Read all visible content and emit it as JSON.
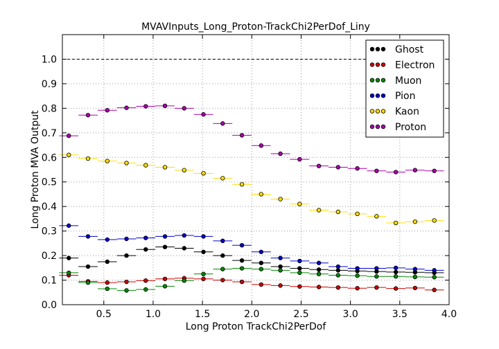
{
  "chart_data": {
    "type": "scatter",
    "title": "MVAVInputs_Long_Proton-TrackChi2PerDof_Liny",
    "xlabel": "Long Proton TrackChi2PerDof",
    "ylabel": "Long Proton MVA Output",
    "xlim": [
      0.08,
      4.0
    ],
    "ylim": [
      0.0,
      1.1
    ],
    "xticks": [
      "0.5",
      "1.0",
      "1.5",
      "2.0",
      "2.5",
      "3.0",
      "3.5",
      "4.0"
    ],
    "yticks": [
      "0.0",
      "0.1",
      "0.2",
      "0.3",
      "0.4",
      "0.5",
      "0.6",
      "0.7",
      "0.8",
      "0.9",
      "1.0"
    ],
    "grid": true,
    "reference_line": 1.0,
    "legend_position": "top-right",
    "x": [
      0.145,
      0.34,
      0.535,
      0.73,
      0.925,
      1.12,
      1.315,
      1.51,
      1.705,
      1.9,
      2.095,
      2.29,
      2.485,
      2.68,
      2.875,
      3.07,
      3.265,
      3.46,
      3.655,
      3.85
    ],
    "series": [
      {
        "name": "Ghost",
        "color": "#000000",
        "values": [
          0.19,
          0.155,
          0.175,
          0.2,
          0.225,
          0.235,
          0.23,
          0.215,
          0.2,
          0.18,
          0.17,
          0.155,
          0.148,
          0.143,
          0.14,
          0.137,
          0.135,
          0.133,
          0.132,
          0.13
        ]
      },
      {
        "name": "Electron",
        "color": "#cc0000",
        "values": [
          0.12,
          0.095,
          0.09,
          0.093,
          0.098,
          0.105,
          0.108,
          0.105,
          0.1,
          0.093,
          0.082,
          0.078,
          0.074,
          0.072,
          0.07,
          0.067,
          0.07,
          0.066,
          0.068,
          0.06
        ]
      },
      {
        "name": "Muon",
        "color": "#008800",
        "values": [
          0.13,
          0.09,
          0.065,
          0.058,
          0.062,
          0.075,
          0.098,
          0.125,
          0.145,
          0.148,
          0.145,
          0.14,
          0.13,
          0.125,
          0.12,
          0.118,
          0.115,
          0.115,
          0.113,
          0.112
        ]
      },
      {
        "name": "Pion",
        "color": "#0000cc",
        "values": [
          0.322,
          0.278,
          0.265,
          0.268,
          0.272,
          0.278,
          0.282,
          0.278,
          0.26,
          0.242,
          0.215,
          0.19,
          0.178,
          0.17,
          0.155,
          0.148,
          0.148,
          0.15,
          0.145,
          0.14
        ]
      },
      {
        "name": "Kaon",
        "color": "#ffdd00",
        "values": [
          0.61,
          0.595,
          0.585,
          0.577,
          0.568,
          0.56,
          0.548,
          0.535,
          0.515,
          0.49,
          0.45,
          0.43,
          0.41,
          0.385,
          0.378,
          0.37,
          0.36,
          0.333,
          0.338,
          0.343
        ]
      },
      {
        "name": "Proton",
        "color": "#aa00aa",
        "values": [
          0.688,
          0.772,
          0.792,
          0.802,
          0.808,
          0.81,
          0.8,
          0.775,
          0.738,
          0.69,
          0.648,
          0.615,
          0.592,
          0.565,
          0.56,
          0.555,
          0.545,
          0.54,
          0.548,
          0.545
        ]
      }
    ]
  }
}
